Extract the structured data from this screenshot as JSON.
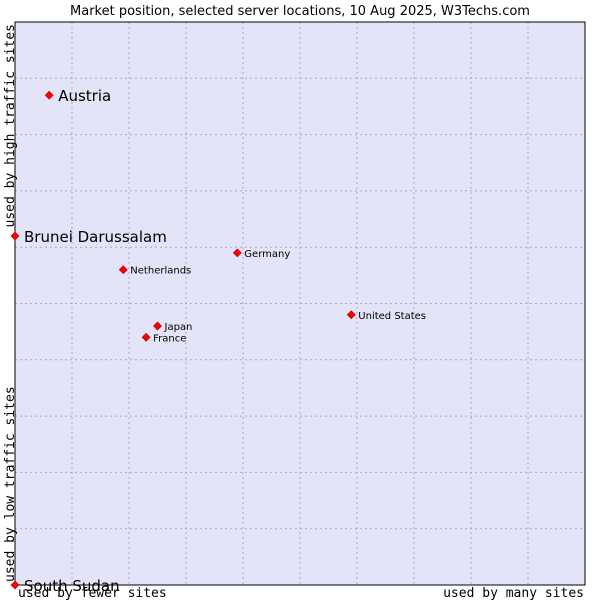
{
  "chart_data": {
    "type": "scatter",
    "title": "Market position, selected server locations, 10 Aug 2025, W3Techs.com",
    "xlabel_low": "used by fewer sites",
    "xlabel_high": "used by many sites",
    "ylabel_low": "used by low traffic sites",
    "ylabel_high": "used by high traffic sites",
    "xlim": [
      0,
      10
    ],
    "ylim": [
      0,
      10
    ],
    "grid": true,
    "colors": {
      "plot_bg": "#e3e4f7",
      "grid": "#a8a8c8",
      "frame": "#000000",
      "marker": "#ff0000"
    },
    "points": [
      {
        "label": "Austria",
        "x": 0.6,
        "y": 8.7,
        "label_size": "large"
      },
      {
        "label": "Brunei Darussalam",
        "x": 0.0,
        "y": 6.2,
        "label_size": "large"
      },
      {
        "label": "Germany",
        "x": 3.9,
        "y": 5.9,
        "label_size": "small"
      },
      {
        "label": "Netherlands",
        "x": 1.9,
        "y": 5.6,
        "label_size": "small"
      },
      {
        "label": "United States",
        "x": 5.9,
        "y": 4.8,
        "label_size": "small"
      },
      {
        "label": "Japan",
        "x": 2.5,
        "y": 4.6,
        "label_size": "small"
      },
      {
        "label": "France",
        "x": 2.3,
        "y": 4.4,
        "label_size": "small"
      },
      {
        "label": "South Sudan",
        "x": 0.0,
        "y": 0.0,
        "label_size": "large"
      }
    ]
  }
}
